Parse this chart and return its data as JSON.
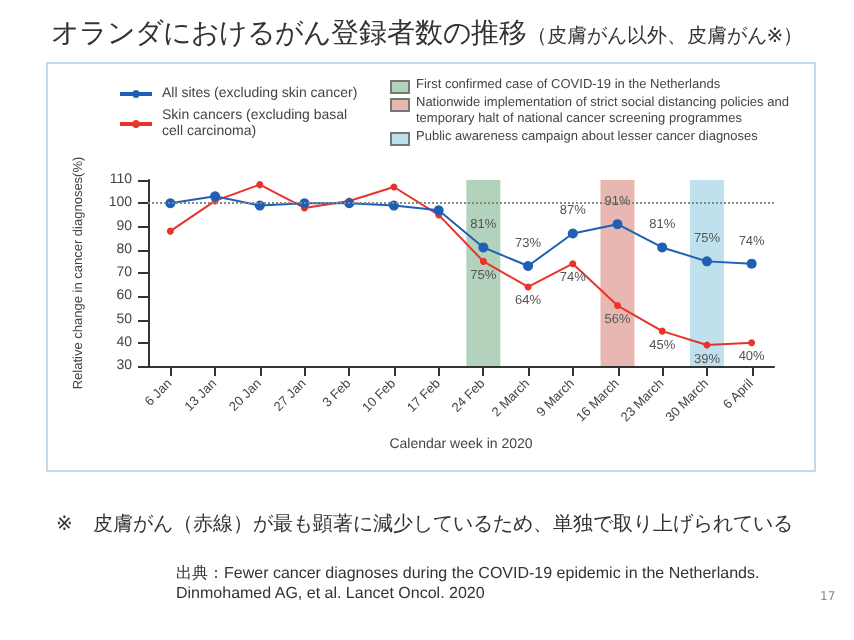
{
  "chart_data": {
    "type": "line",
    "title": "オランダにおけるがん登録者数の推移",
    "subtitle": "（皮膚がん以外、皮膚がん※）",
    "xlabel": "Calendar week in 2020",
    "ylabel": "Relative change in cancer diagnoses(%)",
    "categories": [
      "6 Jan",
      "13 Jan",
      "20 Jan",
      "27 Jan",
      "3 Feb",
      "10 Feb",
      "17 Feb",
      "24 Feb",
      "2 March",
      "9 March",
      "16 March",
      "23 March",
      "30 March",
      "6 April"
    ],
    "series": [
      {
        "name": "All sites (excluding skin cancer)",
        "color": "#1f5fb4",
        "values": [
          100,
          103,
          99,
          100,
          100,
          99,
          97,
          81,
          73,
          87,
          91,
          81,
          75,
          74
        ],
        "value_labels": [
          null,
          null,
          null,
          null,
          null,
          null,
          null,
          "81%",
          "73%",
          "87%",
          "91%",
          "81%",
          "75%",
          "74%"
        ]
      },
      {
        "name": "Skin cancers (excluding basal cell carcinoma)",
        "color": "#e8332a",
        "values": [
          88,
          101,
          108,
          98,
          101,
          107,
          95,
          75,
          64,
          74,
          56,
          45,
          39,
          40
        ],
        "value_labels": [
          null,
          null,
          null,
          null,
          null,
          null,
          null,
          "75%",
          "64%",
          "74%",
          "56%",
          "45%",
          "39%",
          "40%"
        ]
      }
    ],
    "ylim": [
      30,
      110
    ],
    "yticks": [
      30,
      40,
      50,
      60,
      70,
      80,
      90,
      100,
      110
    ],
    "marker": "circle",
    "line_style": "solid",
    "grid": false,
    "legend": "top",
    "ref_lines": [
      {
        "axis": "y",
        "value": 100,
        "color": "#888888",
        "line_style": "dotted"
      }
    ],
    "bands": [
      {
        "axis": "x",
        "from": "24 Feb",
        "to": "24 Feb",
        "label": "First confirmed case of COVID-19 in the Netherlands",
        "color": "#b3d2bb"
      },
      {
        "axis": "x",
        "from": "16 March",
        "to": "16 March",
        "label": "Nationwide implementation of strict social distancing policies and temporary halt of national cancer screening programmes",
        "color": "#e9b7b2"
      },
      {
        "axis": "x",
        "from": "30 March",
        "to": "30 March",
        "label": "Public awareness campaign about lesser cancer diagnoses",
        "color": "#bfe1ed"
      }
    ],
    "annotations": [
      "※　皮膚がん（赤線）が最も顕著に減少しているため、単独で取り上げられている",
      "出典：Fewer cancer diagnoses during the COVID-19 epidemic in the Netherlands.\nDinmohamed AG, et al. Lancet Oncol. 2020",
      "17"
    ]
  }
}
